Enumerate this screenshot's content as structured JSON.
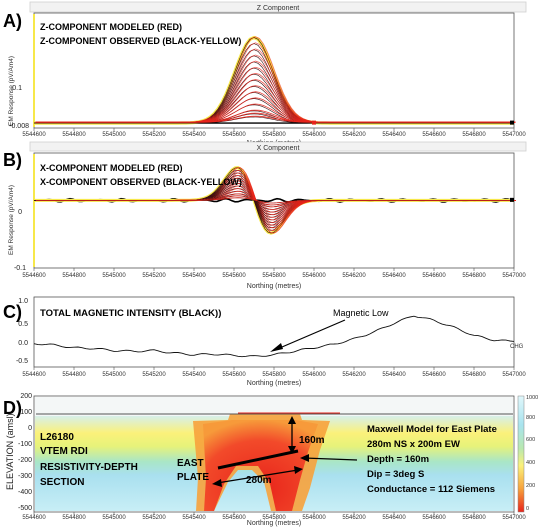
{
  "chart_data": [
    {
      "type": "line",
      "panel": "A)",
      "header": "Z Component",
      "annotation_lines": [
        "Z-COMPONENT MODELED (RED)",
        "Z-COMPONENT OBSERVED  (BLACK-YELLOW)"
      ],
      "ylabel": "EM Response  (pV/Am4)",
      "xlabel": "Northing (metres)",
      "yticks": [
        "0.1",
        "-0.008"
      ],
      "x_ticks": [
        5544600,
        5544800,
        5545000,
        5545200,
        5545400,
        5545600,
        5545800,
        5546000,
        5546200,
        5546400,
        5546600,
        5546800,
        5547000
      ],
      "xlim": [
        5544600,
        5547000
      ],
      "ylim": [
        -0.008,
        0.18
      ],
      "peak_center": 5545700,
      "channel_peaks": [
        0.14,
        0.13,
        0.12,
        0.11,
        0.1,
        0.09,
        0.08,
        0.07,
        0.06,
        0.05,
        0.04,
        0.03,
        0.02,
        0.015,
        0.01
      ],
      "colors": {
        "modeled": "#e8241b",
        "observed_dark": "#3a1010",
        "observed_light": "#f7e84a"
      }
    },
    {
      "type": "line",
      "panel": "B)",
      "header": "X Component",
      "annotation_lines": [
        "X-COMPONENT MODELED (RED)",
        "X-COMPONENT OBSERVED  (BLACK-YELLOW)"
      ],
      "ylabel": "EM Response  (pV/Am4)",
      "xlabel": "Northing (metres)",
      "yticks": [
        "0",
        "-0.1"
      ],
      "x_ticks": [
        5544600,
        5544800,
        5545000,
        5545200,
        5545400,
        5545600,
        5545800,
        5546000,
        5546200,
        5546400,
        5546600,
        5546800,
        5547000
      ],
      "xlim": [
        5544600,
        5547000
      ],
      "ylim": [
        -0.1,
        0.07
      ],
      "crossover": 5545700,
      "channel_amplitudes": [
        0.05,
        0.046,
        0.042,
        0.038,
        0.034,
        0.03,
        0.026,
        0.022,
        0.018,
        0.014,
        0.01,
        0.007,
        0.004
      ]
    },
    {
      "type": "line",
      "panel": "C)",
      "title": "TOTAL MAGNETIC INTENSITY (BLACK))",
      "annotation": "Magnetic Low",
      "end_label": "CHG",
      "xlabel": "Northing (metres)",
      "yticks": [
        "1.0",
        "0.5",
        "0.0",
        "-0.5"
      ],
      "x_ticks": [
        5544600,
        5544800,
        5545000,
        5545200,
        5545400,
        5545600,
        5545800,
        5546000,
        5546200,
        5546400,
        5546600,
        5546800,
        5547000
      ],
      "xlim": [
        5544600,
        5547000
      ],
      "ylim": [
        -0.75,
        1.25
      ],
      "series": [
        {
          "x": [
            5544600,
            5544700,
            5544800,
            5544900,
            5545000,
            5545100,
            5545200,
            5545300,
            5545400,
            5545500,
            5545600,
            5545700,
            5545800,
            5545900,
            5546000,
            5546100,
            5546200,
            5546300,
            5546400,
            5546500,
            5546600,
            5546700,
            5546800,
            5546900,
            5547000
          ],
          "y": [
            -0.08,
            -0.12,
            -0.2,
            -0.22,
            -0.28,
            -0.3,
            -0.28,
            -0.35,
            -0.4,
            -0.38,
            -0.42,
            -0.45,
            -0.4,
            -0.3,
            -0.2,
            -0.1,
            0.05,
            0.25,
            0.5,
            0.72,
            0.58,
            0.38,
            0.15,
            0.02,
            -0.02
          ]
        }
      ]
    },
    {
      "type": "heatmap",
      "panel": "D)",
      "ylabel": "ELEVATION (amsl)",
      "xlabel": "Northing (metres)",
      "yticks": [
        "200",
        "100",
        "0",
        "-100",
        "-200",
        "-300",
        "-400",
        "-500"
      ],
      "x_ticks": [
        5544600,
        5544800,
        5545000,
        5545200,
        5545400,
        5545600,
        5545800,
        5546000,
        5546200,
        5546400,
        5546600,
        5546800,
        5547000
      ],
      "xlim": [
        5544600,
        5547000
      ],
      "ylim": [
        -520,
        220
      ],
      "colorbar_ticks": [
        "1000",
        "800",
        "600",
        "400",
        "200",
        "0"
      ],
      "left_labels": [
        "L26180",
        "VTEM RDI",
        "RESISTIVITY-DEPTH",
        "SECTION"
      ],
      "plate_label_lines": [
        "EAST",
        "PLATE"
      ],
      "dimension_labels": [
        "160m",
        "280m"
      ],
      "model_lines": [
        "Maxwell Model for East Plate",
        "280m NS x 200m EW",
        "Depth = 160m",
        "Dip = 3deg S",
        "Conductance = 112 Siemens"
      ]
    }
  ]
}
